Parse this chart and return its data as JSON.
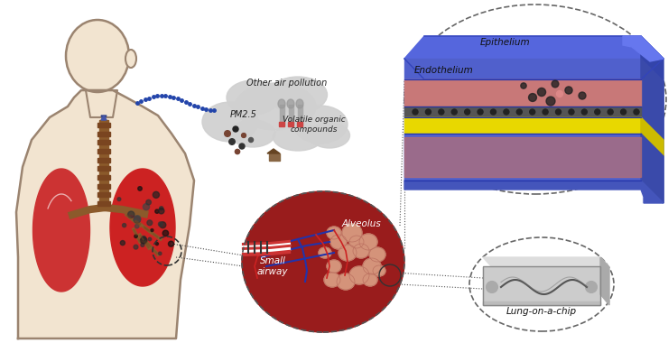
{
  "bg_color": "#ffffff",
  "figure_size": [
    7.4,
    3.8
  ],
  "dpi": 100,
  "human_body_color": "#f2e4d0",
  "human_outline_color": "#9b8470",
  "lung_color": "#cc3333",
  "lung_right_color": "#cc2222",
  "trachea_color": "#8b5a2b",
  "trachea_ring_color": "#7a4520",
  "cloud_color": "#d0d0d0",
  "texts": {
    "other_air": "Other air pollution",
    "pm25": "PM2.5",
    "voc": "Volatile organic\ncompounds",
    "alveolus": "Alveolus",
    "small_airway": "Small\nairway",
    "epithelium": "Epithelium",
    "endothelium": "Endothelium",
    "lung_chip": "Lung-on-a-chip"
  },
  "yellow_layer": "#e8d800",
  "blue_body": "#5060cc",
  "blue_dark": "#3a4aaa",
  "pink_layer": "#cc8080",
  "red_arrow": "#cc2222",
  "alveolus_bg": "#991c1c",
  "alveolus_tissue": "#d4937a",
  "blue_vein": "#2233aa",
  "red_vein": "#cc3333",
  "dotted_color": "#555555",
  "particle_dark": "#2a2a2a",
  "font_size": 7.5
}
